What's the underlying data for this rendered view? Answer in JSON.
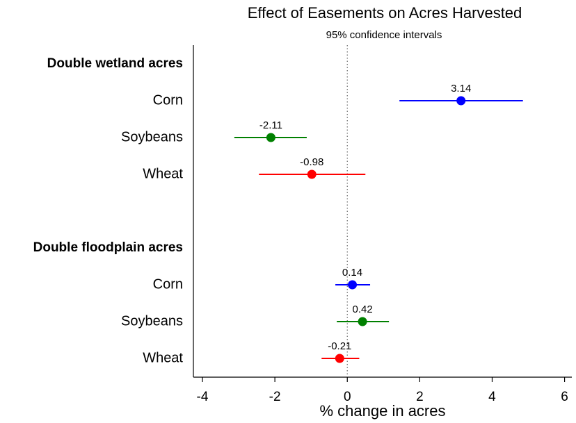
{
  "chart_data": {
    "type": "coefplot",
    "title": "Effect of Easements on Acres Harvested",
    "subtitle": "95% confidence intervals",
    "xlabel": "% change in acres",
    "xlim": [
      -4.25,
      6.2
    ],
    "xticks": [
      -4,
      -2,
      0,
      2,
      4,
      6
    ],
    "refline": 0,
    "groups": [
      {
        "name": "Double wetland acres",
        "categories": [
          "Corn",
          "Soybeans",
          "Wheat"
        ],
        "colors": [
          "#0000ff",
          "#008000",
          "#ff0000"
        ],
        "values": [
          3.14,
          -2.11,
          -0.98
        ],
        "lower": [
          1.44,
          -3.12,
          -2.44
        ],
        "upper": [
          4.85,
          -1.12,
          0.5
        ]
      },
      {
        "name": "Double floodplain acres",
        "categories": [
          "Corn",
          "Soybeans",
          "Wheat"
        ],
        "colors": [
          "#0000ff",
          "#008000",
          "#ff0000"
        ],
        "values": [
          0.14,
          0.42,
          -0.21
        ],
        "lower": [
          -0.33,
          -0.29,
          -0.71
        ],
        "upper": [
          0.63,
          1.15,
          0.33
        ]
      }
    ]
  }
}
